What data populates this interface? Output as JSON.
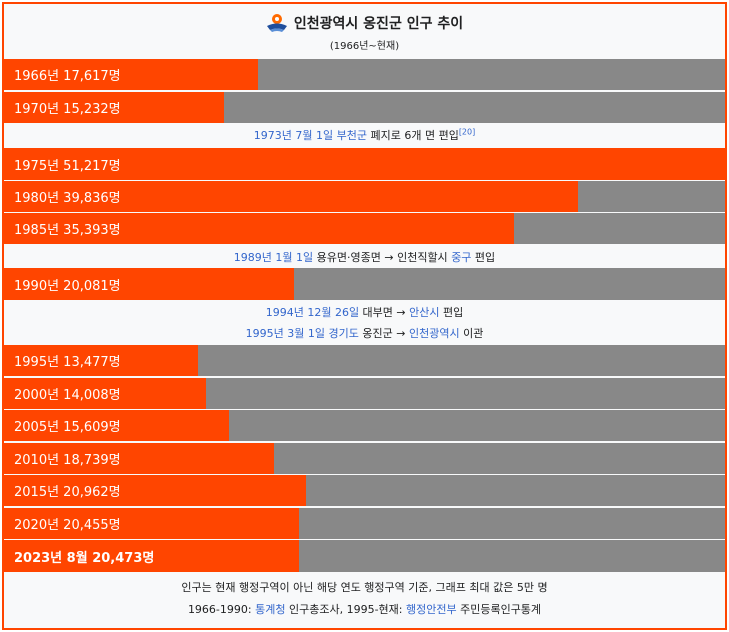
{
  "header": {
    "title": "인천광역시 옹진군 인구 추이",
    "subtitle": "(1966년~현재)",
    "emblem_icon": "incheon-emblem-icon"
  },
  "colors": {
    "bar": "#ff4500",
    "track": "#888888",
    "link": "#3366cc",
    "border": "#ff4500"
  },
  "chart_data": {
    "type": "bar",
    "orientation": "horizontal",
    "xlim": [
      0,
      50000
    ],
    "categories": [
      "1966년",
      "1970년",
      "1975년",
      "1980년",
      "1985년",
      "1990년",
      "1995년",
      "2000년",
      "2005년",
      "2010년",
      "2015년",
      "2020년",
      "2023년 8월"
    ],
    "values": [
      17617,
      15232,
      51217,
      39836,
      35393,
      20081,
      13477,
      14008,
      15609,
      18739,
      20962,
      20455,
      20473
    ],
    "labels": [
      "1966년 17,617명",
      "1970년 15,232명",
      "1975년 51,217명",
      "1980년 39,836명",
      "1985년 35,393명",
      "1990년 20,081명",
      "1995년 13,477명",
      "2000년 14,008명",
      "2005년 15,609명",
      "2010년 18,739명",
      "2015년 20,962명",
      "2020년 20,455명",
      "2023년 8월 20,473명"
    ]
  },
  "notes": {
    "n1973": {
      "date": "1973년 7월 1일",
      "county": "부천군",
      "text": " 폐지로 6개 면 편입",
      "ref": "[20]"
    },
    "n1989": {
      "date": "1989년 1월 1일",
      "text1": " 용유면·영종면 → 인천직할시 ",
      "district": "중구",
      "text2": " 편입"
    },
    "n1994": {
      "date": "1994년 12월 26일",
      "text1": " 대부면 → ",
      "city": "안산시",
      "text2": " 편입"
    },
    "n1995": {
      "date": "1995년 3월 1일",
      "province": "경기도",
      "text1": " 옹진군 → ",
      "city": "인천광역시",
      "text2": " 이관"
    }
  },
  "footer": {
    "line1": "인구는 현재 행정구역이 아닌 해당 연도 행정구역 기준, 그래프 최대 값은 5만 명",
    "l2_a": "1966-1990: ",
    "l2_link1": "통계청",
    "l2_b": " 인구총조사, 1995-현재: ",
    "l2_link2": "행정안전부",
    "l2_c": " 주민등록인구통계"
  }
}
